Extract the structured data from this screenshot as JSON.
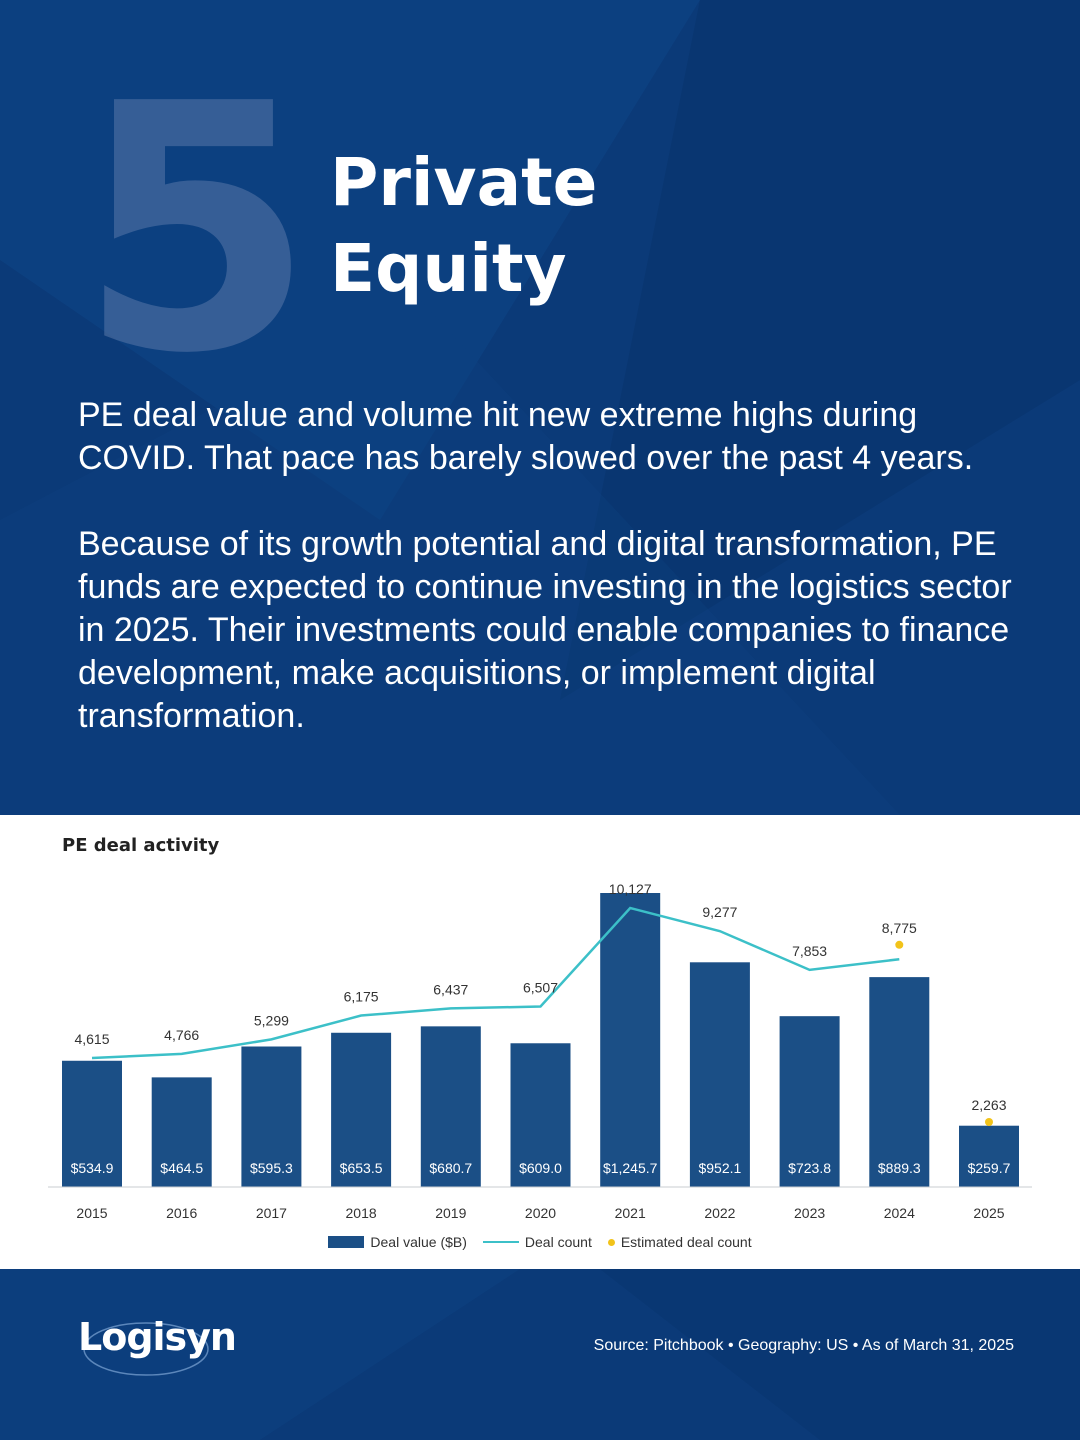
{
  "hero": {
    "number": "5",
    "title_line1": "Private",
    "title_line2": "Equity"
  },
  "body": {
    "paragraph1": "PE deal value and volume hit new extreme highs during COVID. That pace has barely slowed over the past 4 years.",
    "paragraph2": "Because of its growth potential and digital transformation, PE funds are expected to continue investing in the logistics sector in 2025. Their investments could enable companies to finance development, make acquisitions, or implement digital transformation."
  },
  "colors": {
    "background": "#0b3a78",
    "bar": "#1b4f86",
    "line": "#3cc0c8",
    "estimate_dot": "#f2c31a"
  },
  "chart_data": {
    "type": "bar",
    "title": "PE deal activity",
    "categories": [
      "2015",
      "2016",
      "2017",
      "2018",
      "2019",
      "2020",
      "2021",
      "2022",
      "2023",
      "2024",
      "2025"
    ],
    "series": [
      {
        "name": "Deal value ($B)",
        "type": "bar",
        "values": [
          534.9,
          464.5,
          595.3,
          653.5,
          680.7,
          609.0,
          1245.7,
          952.1,
          723.8,
          889.3,
          259.7
        ],
        "labels": [
          "$534.9",
          "$464.5",
          "$595.3",
          "$653.5",
          "$680.7",
          "$609.0",
          "$1,245.7",
          "$952.1",
          "$723.8",
          "$889.3",
          "$259.7"
        ]
      },
      {
        "name": "Deal count",
        "type": "line",
        "values": [
          4615,
          4766,
          5299,
          6175,
          6437,
          6507,
          10127,
          9277,
          7853,
          8245,
          null
        ],
        "labels": [
          "4,615",
          "4,766",
          "5,299",
          "6,175",
          "6,437",
          "6,507",
          "10,127",
          "9,277",
          "7,853",
          "",
          ""
        ]
      },
      {
        "name": "Estimated deal count",
        "type": "scatter",
        "values": [
          null,
          null,
          null,
          null,
          null,
          null,
          null,
          null,
          null,
          8775,
          2263
        ],
        "labels": [
          "",
          "",
          "",
          "",
          "",
          "",
          "",
          "",
          "",
          "8,775",
          "2,263"
        ]
      }
    ],
    "legend": "bottom",
    "grid": false
  },
  "footer": {
    "logo": "Logisyn",
    "source": "Source: Pitchbook • Geography: US • As of March 31, 2025"
  }
}
